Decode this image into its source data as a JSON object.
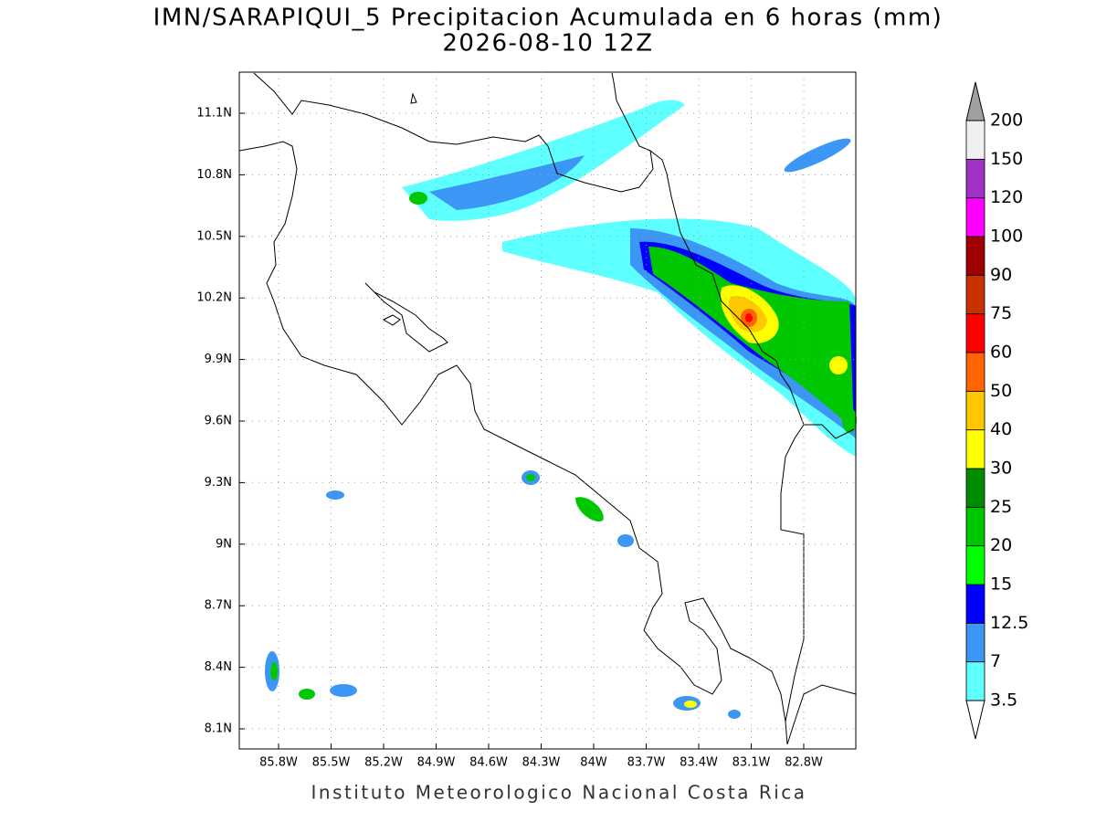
{
  "title": "IMN/SARAPIQUI_5 Precipitacion Acumulada en 6 horas (mm)",
  "subtitle": "2026-08-10 12Z",
  "map": {
    "lat_ticks": [
      "11.1N",
      "10.8N",
      "10.5N",
      "10.2N",
      "9.9N",
      "9.6N",
      "9.3N",
      "9N",
      "8.7N",
      "8.4N",
      "8.1N"
    ],
    "lon_ticks": [
      "85.8W",
      "85.5W",
      "85.2W",
      "84.9W",
      "84.6W",
      "84.3W",
      "84W",
      "83.7W",
      "83.4W",
      "83.1W",
      "82.8W"
    ],
    "grid": true
  },
  "colorbar": {
    "levels": [
      "3.5",
      "7",
      "12.5",
      "15",
      "20",
      "25",
      "30",
      "40",
      "50",
      "60",
      "75",
      "90",
      "100",
      "120",
      "150",
      "200"
    ],
    "colors": [
      "#5effff",
      "#3c96f5",
      "#0000ff",
      "#00ff00",
      "#00c800",
      "#008c00",
      "#ffff00",
      "#ffc800",
      "#ff6400",
      "#ff0000",
      "#c83200",
      "#a00000",
      "#ff00ff",
      "#a032c8",
      "#f0f0f0"
    ],
    "over_color": "#a0a0a0",
    "under_color": "#ffffff"
  },
  "footer": "Instituto Meteorologico Nacional Costa Rica"
}
